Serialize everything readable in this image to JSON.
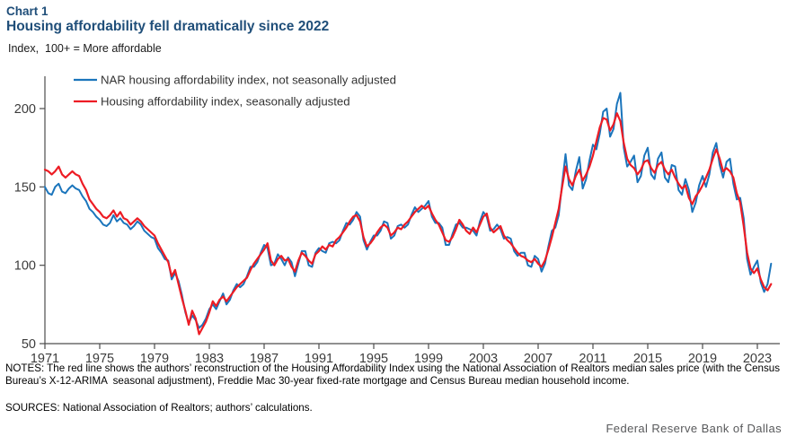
{
  "header": {
    "chart_label": "Chart 1",
    "title": "Housing affordability fell dramatically since 2022",
    "unit_label": "Index,  100+ = More affordable"
  },
  "notes": {
    "notes_text": "NOTES: The red line shows the authors’ reconstruction of the Housing Affordability Index using the National Association of Realtors median sales price (with the Census Bureau’s X-12-ARIMA  seasonal adjustment), Freddie Mac 30-year fixed-rate mortgage and Census Bureau median household income.",
    "sources_text": "SOURCES: National Association of Realtors; authors’ calculations."
  },
  "footer": {
    "brand": "Federal Reserve Bank of Dallas"
  },
  "colors": {
    "title_navy": "#1f4e79",
    "blue_line": "#1b75bc",
    "red_line": "#ed1c24",
    "axis": "#4d4d4d",
    "tick_label": "#3c3c3c",
    "legend_text": "#333333",
    "brand_gray": "#58595b"
  },
  "chart_data": {
    "type": "line",
    "title": "Housing affordability fell dramatically since 2022",
    "ylabel": "Index, 100+ = More affordable",
    "xlabel": "",
    "grid": false,
    "legend_position": "top-left-inside",
    "x_start": 1971,
    "x_step": 0.25,
    "x_ticks": [
      1971,
      1975,
      1979,
      1983,
      1987,
      1991,
      1995,
      1999,
      2003,
      2007,
      2011,
      2015,
      2019,
      2023
    ],
    "y_ticks": [
      50,
      100,
      150,
      200
    ],
    "ylim": [
      50,
      220
    ],
    "xlim": [
      1971,
      2024.6
    ],
    "series": [
      {
        "name": "NAR housing affordability index, not seasonally adjusted",
        "color": "#1b75bc",
        "values": [
          150,
          146,
          145,
          150,
          152,
          147,
          146,
          149,
          151,
          149,
          148,
          144,
          141,
          136,
          134,
          131,
          129,
          126,
          125,
          127,
          132,
          128,
          130,
          127,
          126,
          123,
          125,
          128,
          126,
          122,
          120,
          118,
          117,
          111,
          108,
          104,
          103,
          91,
          95,
          90,
          81,
          70,
          63,
          68,
          65,
          60,
          62,
          66,
          72,
          75,
          72,
          77,
          82,
          75,
          78,
          84,
          88,
          86,
          88,
          93,
          99,
          99,
          102,
          108,
          113,
          111,
          100,
          101,
          107,
          104,
          100,
          105,
          102,
          93,
          101,
          109,
          109,
          100,
          99,
          108,
          111,
          109,
          108,
          114,
          115,
          114,
          116,
          122,
          127,
          126,
          129,
          134,
          131,
          116,
          110,
          115,
          119,
          119,
          122,
          128,
          127,
          117,
          119,
          125,
          126,
          124,
          126,
          132,
          137,
          134,
          136,
          138,
          141,
          131,
          127,
          127,
          124,
          113,
          113,
          120,
          126,
          127,
          124,
          124,
          123,
          122,
          119,
          128,
          134,
          131,
          122,
          123,
          126,
          123,
          117,
          118,
          117,
          109,
          106,
          108,
          108,
          100,
          99,
          106,
          104,
          96,
          101,
          112,
          122,
          124,
          132,
          152,
          171,
          151,
          148,
          160,
          169,
          149,
          155,
          167,
          177,
          174,
          184,
          198,
          200,
          182,
          187,
          203,
          210,
          175,
          163,
          166,
          170,
          153,
          157,
          170,
          175,
          158,
          155,
          168,
          172,
          156,
          153,
          164,
          163,
          148,
          145,
          155,
          148,
          134,
          140,
          151,
          157,
          150,
          158,
          172,
          178,
          164,
          156,
          166,
          168,
          152,
          142,
          143,
          130,
          104,
          94,
          99,
          103,
          89,
          83,
          88,
          101
        ]
      },
      {
        "name": "Housing affordability index, seasonally adjusted",
        "color": "#ed1c24",
        "values": [
          161,
          160,
          158,
          160,
          163,
          158,
          156,
          158,
          160,
          158,
          157,
          152,
          148,
          142,
          139,
          136,
          134,
          131,
          130,
          132,
          135,
          131,
          134,
          130,
          129,
          126,
          128,
          130,
          128,
          125,
          123,
          121,
          119,
          114,
          110,
          106,
          102,
          93,
          97,
          88,
          79,
          71,
          62,
          71,
          66,
          56,
          60,
          64,
          70,
          77,
          74,
          78,
          80,
          77,
          80,
          83,
          86,
          88,
          90,
          92,
          97,
          101,
          104,
          107,
          110,
          114,
          103,
          100,
          104,
          106,
          103,
          104,
          99,
          96,
          103,
          108,
          106,
          103,
          101,
          107,
          109,
          112,
          110,
          113,
          112,
          116,
          118,
          121,
          124,
          128,
          131,
          132,
          128,
          118,
          112,
          114,
          117,
          121,
          124,
          126,
          124,
          119,
          121,
          124,
          123,
          126,
          128,
          131,
          134,
          136,
          138,
          136,
          138,
          133,
          129,
          126,
          121,
          116,
          115,
          118,
          123,
          129,
          126,
          122,
          120,
          124,
          121,
          126,
          131,
          133,
          124,
          121,
          123,
          125,
          119,
          116,
          114,
          111,
          108,
          106,
          105,
          103,
          102,
          104,
          101,
          99,
          103,
          110,
          118,
          127,
          136,
          150,
          163,
          155,
          151,
          157,
          161,
          154,
          158,
          163,
          170,
          179,
          188,
          194,
          193,
          186,
          190,
          197,
          192,
          178,
          168,
          164,
          162,
          158,
          161,
          166,
          167,
          162,
          159,
          164,
          166,
          161,
          158,
          161,
          156,
          152,
          149,
          151,
          143,
          139,
          144,
          147,
          151,
          156,
          161,
          168,
          174,
          168,
          160,
          162,
          160,
          156,
          146,
          140,
          125,
          108,
          98,
          95,
          98,
          91,
          86,
          84,
          88
        ]
      }
    ]
  }
}
